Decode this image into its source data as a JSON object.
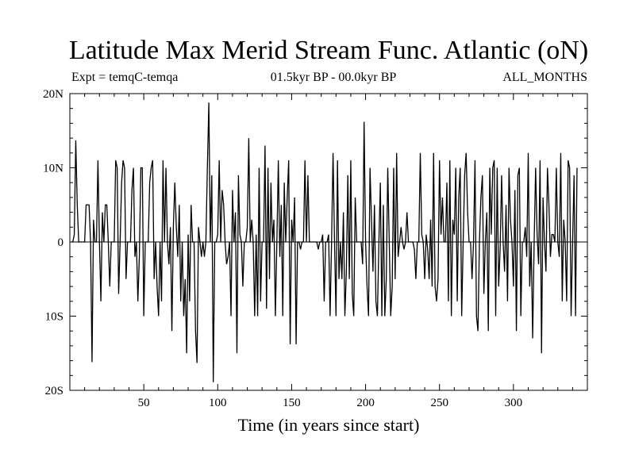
{
  "chart_data": {
    "type": "line",
    "title": "Latitude Max Merid Stream Func. Atlantic (oN)",
    "subtitle_left": "Expt = temqC-temqa",
    "subtitle_center": "01.5kyr BP - 00.0kyr BP",
    "subtitle_right": "ALL_MONTHS",
    "xlabel": "Time (in years since start)",
    "ylabel": "",
    "xlim": [
      0,
      350
    ],
    "ylim": [
      -20,
      20
    ],
    "x_ticks": [
      50,
      100,
      150,
      200,
      250,
      300
    ],
    "x_tick_labels": [
      "50",
      "100",
      "150",
      "200",
      "250",
      "300"
    ],
    "y_ticks": [
      -20,
      -10,
      0,
      10,
      20
    ],
    "y_tick_labels": [
      "20S",
      "10S",
      "0",
      "10N",
      "20N"
    ],
    "series": [
      {
        "name": "Latitude Max Merid Stream Func. Atlantic",
        "x_start": 1,
        "x_step": 1,
        "values": [
          0,
          0,
          1,
          13.7,
          5,
          0,
          0,
          0,
          0,
          0,
          5,
          5,
          5,
          0,
          -16.2,
          3,
          0,
          0,
          11,
          0,
          -8,
          4,
          0,
          5,
          5,
          0,
          -6,
          0,
          0,
          0,
          11,
          10,
          -7,
          0,
          8,
          11,
          10,
          -5,
          0,
          0,
          0,
          7,
          10,
          -2,
          0,
          -8,
          -2,
          10,
          10,
          -10,
          0,
          0,
          0,
          8,
          10,
          11,
          -5,
          0,
          -6,
          -10,
          0,
          -8,
          11,
          0,
          10,
          0,
          -3,
          2,
          -12,
          2,
          8,
          2,
          -2,
          5,
          -8,
          0,
          -10,
          -5,
          -15,
          1,
          -8,
          5,
          0,
          0,
          -12,
          -16.3,
          2,
          0,
          -2,
          0,
          -2,
          0,
          10,
          18.8,
          0,
          9,
          -18.9,
          0,
          0,
          1,
          11,
          0,
          7,
          5,
          0,
          -3,
          -2,
          0,
          -10,
          7,
          0,
          4,
          -15,
          9,
          1,
          0,
          -6,
          0,
          0,
          2,
          14,
          0,
          3,
          0,
          -10,
          1,
          -10,
          10,
          -8,
          0,
          0,
          13,
          -9,
          10,
          -5,
          8,
          0,
          3,
          -10,
          0,
          11,
          -2,
          5,
          -10,
          8,
          0,
          6,
          11,
          -13.8,
          3,
          0,
          6,
          -13.8,
          0,
          0,
          -1,
          0,
          0,
          11,
          0,
          9,
          0,
          0,
          0,
          0,
          0,
          0,
          -1,
          0,
          0,
          1,
          -8,
          0,
          0,
          1,
          -10,
          0,
          12,
          0,
          -10,
          11,
          -5,
          0,
          -5,
          4,
          -10,
          -4,
          9,
          -5,
          11,
          -7,
          -10,
          6,
          0,
          0,
          0,
          0,
          -3,
          16.2,
          0,
          -6,
          -10,
          10,
          3,
          -4,
          5,
          -8,
          -10,
          0,
          8,
          -10,
          5,
          -10,
          -5,
          10,
          0,
          -10,
          -6,
          10,
          -5,
          12,
          -2,
          0,
          2,
          0,
          -1,
          0,
          4,
          0,
          0,
          0,
          0,
          -1,
          -5,
          0,
          0,
          12,
          1,
          0,
          -5,
          1,
          -1,
          -5,
          3,
          -6,
          12,
          -6,
          -8,
          -5,
          11,
          1,
          6,
          0,
          0,
          8,
          -8,
          11,
          -10,
          3,
          1,
          10,
          -8,
          6,
          10,
          -10,
          0,
          9,
          12,
          4,
          0,
          0,
          -5,
          0,
          11,
          -10,
          -12,
          0,
          6,
          9,
          -7,
          0,
          4,
          -12,
          10,
          1,
          10,
          11,
          -10,
          10,
          -6,
          -1,
          9,
          0,
          -4,
          5,
          -8,
          10,
          3,
          0,
          -6,
          7,
          -12,
          9,
          10,
          -10,
          0,
          0,
          2,
          -2,
          12,
          -6,
          0,
          -13,
          0,
          10,
          1,
          -3,
          11,
          -15,
          6,
          0,
          -4,
          10,
          5,
          -2,
          1,
          1,
          0,
          10,
          0,
          -2,
          12,
          -8,
          3,
          0,
          -8,
          11,
          10,
          -10,
          0,
          9,
          -10,
          10
        ]
      }
    ]
  }
}
